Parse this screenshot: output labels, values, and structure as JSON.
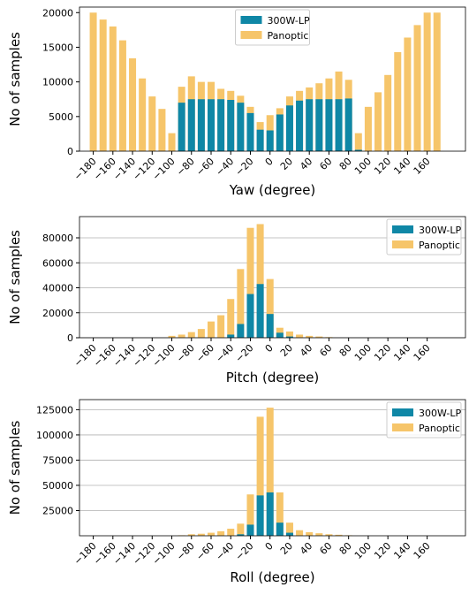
{
  "chart_data": [
    {
      "type": "bar",
      "x_label": "Yaw (degree)",
      "y_label": "No of samples",
      "grid": false,
      "legend": "upper center",
      "x": [
        -180,
        -170,
        -160,
        -150,
        -140,
        -130,
        -120,
        -110,
        -100,
        -90,
        -80,
        -70,
        -60,
        -50,
        -40,
        -30,
        -20,
        -10,
        0,
        10,
        20,
        30,
        40,
        50,
        60,
        70,
        80,
        90,
        100,
        110,
        120,
        130,
        140,
        150,
        160,
        170
      ],
      "series": [
        {
          "name": "Panoptic",
          "color": "#f6c56a",
          "values": [
            20000,
            19000,
            18000,
            16000,
            13400,
            10500,
            7900,
            6100,
            2600,
            9300,
            10800,
            10000,
            10000,
            9000,
            8700,
            8000,
            6400,
            4200,
            5200,
            6200,
            7900,
            8700,
            9200,
            9800,
            10500,
            11500,
            10300,
            2600,
            6400,
            8500,
            11000,
            14300,
            16400,
            18200,
            20000,
            20000
          ]
        },
        {
          "name": "300W-LP",
          "color": "#0f87a6",
          "values": [
            0,
            0,
            0,
            0,
            0,
            0,
            0,
            0,
            0,
            7000,
            7500,
            7500,
            7500,
            7500,
            7400,
            7000,
            5500,
            3100,
            3000,
            5300,
            6600,
            7300,
            7500,
            7500,
            7500,
            7500,
            7600,
            200,
            0,
            0,
            0,
            0,
            0,
            0,
            0,
            0
          ]
        }
      ],
      "xlim": [
        -194,
        199
      ],
      "ylim": [
        0,
        20800
      ],
      "yticks": [
        0,
        5000,
        10000,
        15000,
        20000
      ],
      "xticks": [
        {
          "value": -180,
          "label": "−180"
        },
        {
          "value": -160,
          "label": "−160"
        },
        {
          "value": -140,
          "label": "−140"
        },
        {
          "value": -120,
          "label": "−120"
        },
        {
          "value": -100,
          "label": "−100"
        },
        {
          "value": -80,
          "label": "−80"
        },
        {
          "value": -60,
          "label": "−60"
        },
        {
          "value": -40,
          "label": "−40"
        },
        {
          "value": -20,
          "label": "−20"
        },
        0,
        20,
        40,
        60,
        80,
        100,
        120,
        140,
        160
      ]
    },
    {
      "type": "bar",
      "x_label": "Pitch (degree)",
      "y_label": "No of samples",
      "grid": true,
      "legend": "upper right",
      "x": [
        -180,
        -170,
        -160,
        -150,
        -140,
        -130,
        -120,
        -110,
        -100,
        -90,
        -80,
        -70,
        -60,
        -50,
        -40,
        -30,
        -20,
        -10,
        0,
        10,
        20,
        30,
        40,
        50,
        60,
        70,
        80,
        90,
        100,
        110,
        120,
        130,
        140,
        150,
        160,
        170
      ],
      "series": [
        {
          "name": "Panoptic",
          "color": "#f6c56a",
          "values": [
            0,
            0,
            0,
            0,
            0,
            0,
            0,
            0,
            1500,
            2500,
            4500,
            7000,
            13000,
            18000,
            31000,
            55000,
            88000,
            91000,
            47000,
            8000,
            5000,
            2500,
            1500,
            1000,
            500,
            0,
            0,
            0,
            0,
            0,
            0,
            0,
            0,
            0,
            0,
            0
          ]
        },
        {
          "name": "300W-LP",
          "color": "#0f87a6",
          "values": [
            0,
            0,
            0,
            0,
            0,
            0,
            0,
            0,
            0,
            0,
            0,
            0,
            0,
            0,
            2500,
            11000,
            35000,
            43000,
            19000,
            4000,
            1000,
            0,
            0,
            0,
            0,
            0,
            0,
            0,
            0,
            0,
            0,
            0,
            0,
            0,
            0,
            0
          ]
        }
      ],
      "xlim": [
        -194,
        199
      ],
      "ylim": [
        0,
        97000
      ],
      "yticks": [
        0,
        20000,
        40000,
        60000,
        80000
      ],
      "xticks": [
        {
          "value": -180,
          "label": "−180"
        },
        {
          "value": -160,
          "label": "−160"
        },
        {
          "value": -140,
          "label": "−140"
        },
        {
          "value": -120,
          "label": "−120"
        },
        {
          "value": -100,
          "label": "−100"
        },
        {
          "value": -80,
          "label": "−80"
        },
        {
          "value": -60,
          "label": "−60"
        },
        {
          "value": -40,
          "label": "−40"
        },
        {
          "value": -20,
          "label": "−20"
        },
        0,
        20,
        40,
        60,
        80,
        100,
        120,
        140,
        160
      ]
    },
    {
      "type": "bar",
      "x_label": "Roll (degree)",
      "y_label": "No of samples",
      "grid": true,
      "legend": "upper right",
      "x": [
        -180,
        -170,
        -160,
        -150,
        -140,
        -130,
        -120,
        -110,
        -100,
        -90,
        -80,
        -70,
        -60,
        -50,
        -40,
        -30,
        -20,
        -10,
        0,
        10,
        20,
        30,
        40,
        50,
        60,
        70,
        80,
        90,
        100,
        110,
        120,
        130,
        140,
        150,
        160,
        170
      ],
      "series": [
        {
          "name": "Panoptic",
          "color": "#f6c56a",
          "values": [
            0,
            0,
            0,
            0,
            0,
            0,
            0,
            0,
            0,
            500,
            1500,
            2000,
            3000,
            4500,
            7000,
            12000,
            41000,
            118000,
            127000,
            43000,
            13000,
            5500,
            3500,
            2500,
            1500,
            1000,
            500,
            0,
            0,
            0,
            0,
            0,
            0,
            0,
            0,
            0
          ]
        },
        {
          "name": "300W-LP",
          "color": "#0f87a6",
          "values": [
            0,
            0,
            0,
            0,
            0,
            0,
            0,
            0,
            0,
            0,
            0,
            0,
            0,
            0,
            0,
            1500,
            11000,
            40000,
            43000,
            13000,
            3000,
            0,
            0,
            0,
            0,
            0,
            0,
            0,
            0,
            0,
            0,
            0,
            0,
            0,
            0,
            0
          ]
        }
      ],
      "xlim": [
        -194,
        199
      ],
      "ylim": [
        0,
        135000
      ],
      "yticks": [
        25000,
        50000,
        75000,
        100000,
        125000
      ],
      "xticks": [
        {
          "value": -180,
          "label": "−180"
        },
        {
          "value": -160,
          "label": "−160"
        },
        {
          "value": -140,
          "label": "−140"
        },
        {
          "value": -120,
          "label": "−120"
        },
        {
          "value": -100,
          "label": "−100"
        },
        {
          "value": -80,
          "label": "−80"
        },
        {
          "value": -60,
          "label": "−60"
        },
        {
          "value": -40,
          "label": "−40"
        },
        {
          "value": -20,
          "label": "−20"
        },
        0,
        20,
        40,
        60,
        80,
        100,
        120,
        140,
        160
      ]
    }
  ]
}
